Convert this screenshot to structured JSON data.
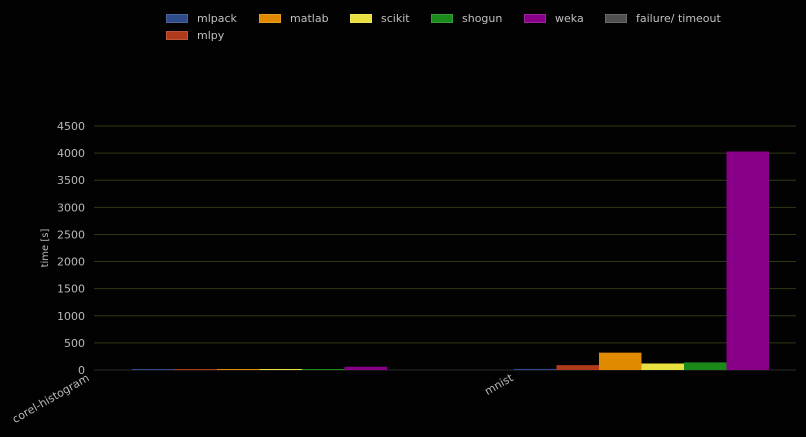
{
  "chart_data": {
    "type": "bar",
    "title": "",
    "xlabel": "",
    "ylabel": "time [s]",
    "ylim": [
      0,
      4500
    ],
    "yticks": [
      0,
      500,
      1000,
      1500,
      2000,
      2500,
      3000,
      3500,
      4000,
      4500
    ],
    "grid": true,
    "legend_position": "top",
    "categories": [
      "corel-histogram",
      "mnist"
    ],
    "series": [
      {
        "name": "mlpack",
        "color": "#2d4a8a",
        "values": [
          2,
          20
        ]
      },
      {
        "name": "mlpy",
        "color": "#b03a1a",
        "values": [
          4,
          90
        ]
      },
      {
        "name": "matlab",
        "color": "#e08a00",
        "values": [
          5,
          320
        ]
      },
      {
        "name": "scikit",
        "color": "#e8e040",
        "values": [
          8,
          120
        ]
      },
      {
        "name": "shogun",
        "color": "#1a8a1a",
        "values": [
          6,
          140
        ]
      },
      {
        "name": "weka",
        "color": "#880088",
        "values": [
          60,
          4030
        ]
      },
      {
        "name": "failure/ timeout",
        "color": "#505050",
        "values": [
          null,
          null
        ]
      }
    ]
  }
}
